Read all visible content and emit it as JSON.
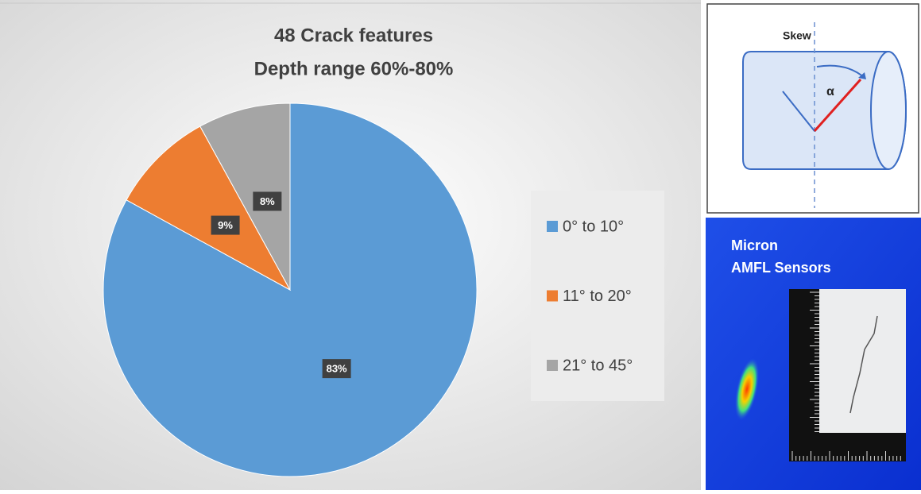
{
  "chart_data": {
    "type": "pie",
    "title": "48 Crack features",
    "subtitle": "Depth range 60%-80%",
    "categories": [
      "0° to 10°",
      "11° to 20°",
      "21° to 45°"
    ],
    "values": [
      83,
      9,
      8
    ],
    "value_labels": [
      "83%",
      "9%",
      "8%"
    ],
    "colors": [
      "#5b9bd5",
      "#ed7d31",
      "#a5a5a5"
    ],
    "legend": "right"
  },
  "diagram": {
    "label": "Skew",
    "angle_label": "α"
  },
  "photo": {
    "caption": [
      "Micron",
      "AMFL Sensors"
    ]
  }
}
